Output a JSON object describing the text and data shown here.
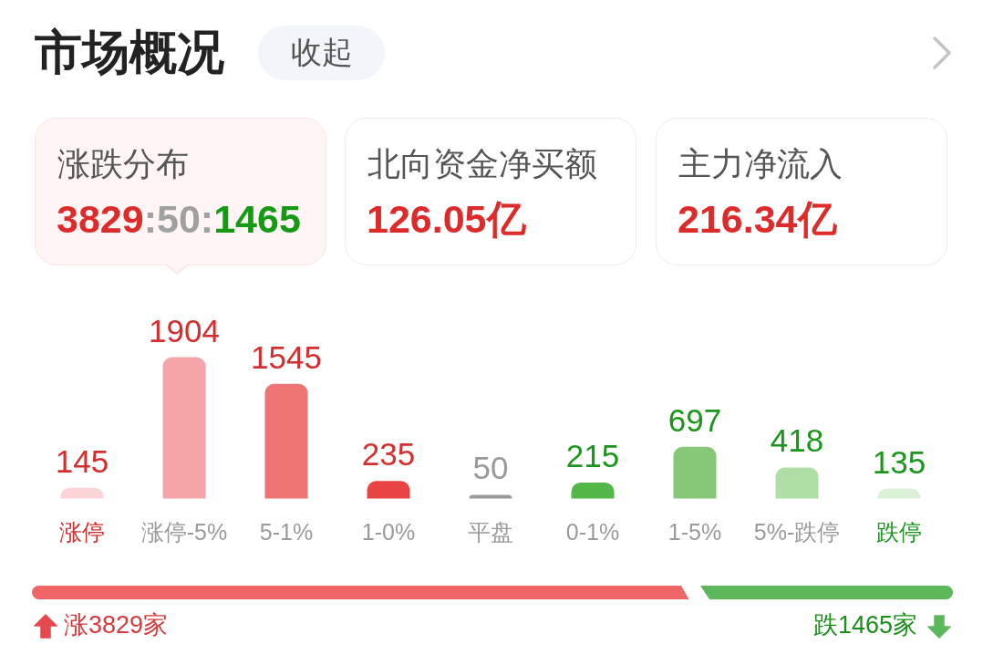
{
  "chart_data": {
    "type": "bar",
    "title": "市场概况",
    "categories": [
      "涨停",
      "涨停-5%",
      "5-1%",
      "1-0%",
      "平盘",
      "0-1%",
      "1-5%",
      "5%-跌停",
      "跌停"
    ],
    "values": [
      145,
      1904,
      1545,
      235,
      50,
      215,
      697,
      418,
      135
    ],
    "colors": [
      "#fbd4d7",
      "#f5a4a7",
      "#ef7474",
      "#e94444",
      "#9a9a9a",
      "#53b847",
      "#86c877",
      "#b0dfa6",
      "#dbf1d6"
    ],
    "data_labels": true,
    "annotations": [
      "收起",
      "涨跌分布",
      "3829:50:1465",
      "北向资金净买额",
      "126.05亿",
      "主力净流入",
      "216.34亿",
      "涨3829家",
      "跌1465家"
    ]
  }
}
